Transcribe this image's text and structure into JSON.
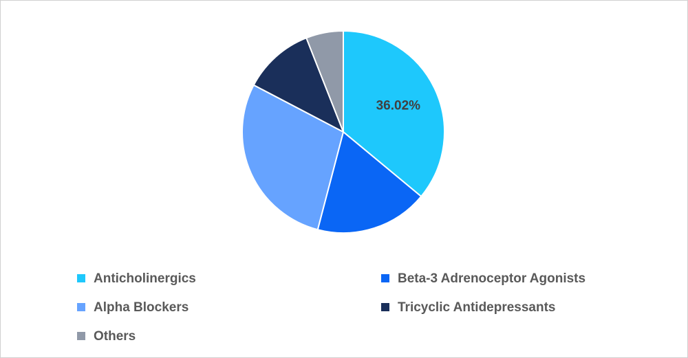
{
  "chart_data": {
    "type": "pie",
    "categories": [
      "Anticholinergics",
      "Beta-3 Adrenoceptor Agonists",
      "Alpha Blockers",
      "Tricyclic Antidepressants",
      "Others"
    ],
    "values": [
      36.02,
      18.06,
      28.6,
      11.36,
      5.96
    ],
    "value_labels": [
      "36.02%",
      null,
      null,
      null,
      null
    ],
    "colors": [
      "#1ec8fc",
      "#0a66f5",
      "#66a3ff",
      "#1a2f5a",
      "#9099a8"
    ]
  }
}
